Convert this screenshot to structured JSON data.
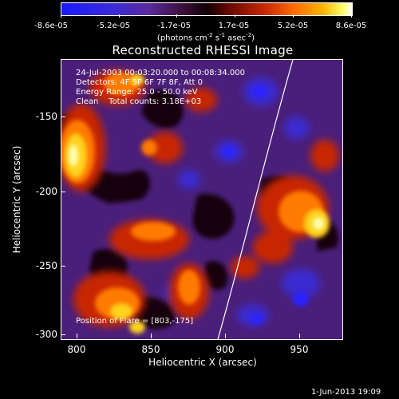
{
  "colorbar": {
    "tick_labels": [
      "-8.6e-05",
      "-5.2e-05",
      "-1.7e-05",
      "1.7e-05",
      "5.2e-05",
      "8.6e-05"
    ],
    "units_text": "(photons cm",
    "units_sup1": "-2",
    "units_mid": " s",
    "units_sup2": "-1",
    "units_end": " asec",
    "units_sup3": "-2",
    "units_close": ")"
  },
  "title": "Reconstructed RHESSI Image",
  "info_lines": [
    "24-Jul-2003 00:03:20.000 to 00:08:34.000",
    "Detectors: 4F 5F 6F 7F 8F, Att 0",
    "Energy Range: 25.0 - 50.0 keV",
    "Clean    Total counts: 3.18E+03"
  ],
  "flare_position": "Position of Flare = [803,-175]",
  "axes": {
    "xlabel": "Heliocentric X (arcsec)",
    "ylabel": "Heliocentric Y (arcsec)",
    "x_ticks": [
      "800",
      "850",
      "900",
      "950"
    ],
    "y_ticks": [
      "-150",
      "-200",
      "-250",
      "-300"
    ]
  },
  "timestamp": "1-Jun-2013 19:09",
  "colors": {
    "background": "#000000",
    "foreground": "#ffffff",
    "colormap_low": "#1a1aff",
    "colormap_mid": "#120006",
    "colormap_high": "#ffffff"
  }
}
